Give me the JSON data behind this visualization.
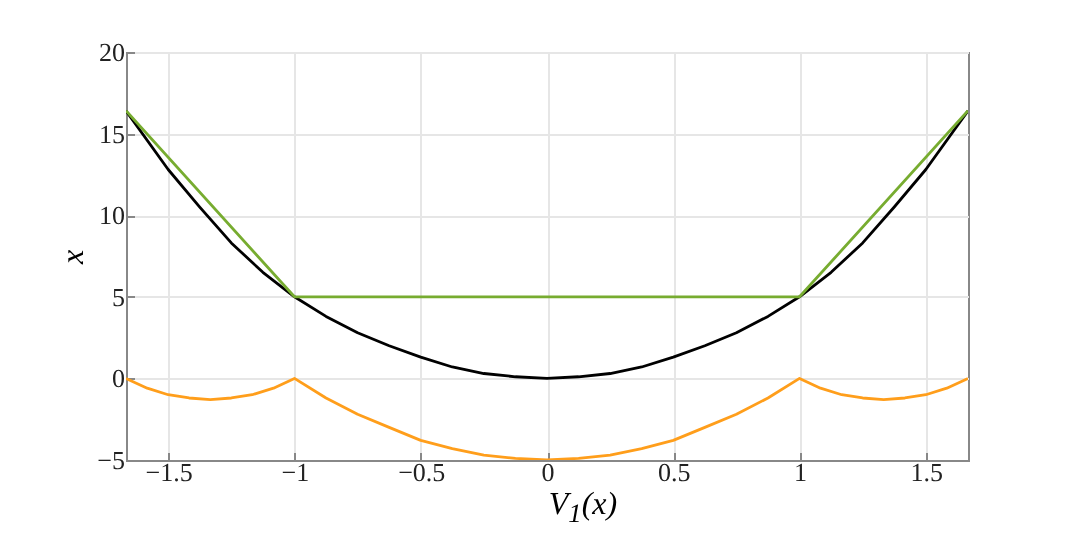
{
  "chart_data": {
    "type": "line",
    "xlabel": "V$_{1}$(x)",
    "ylabel": "x",
    "xlim": [
      -1.667,
      1.667
    ],
    "ylim": [
      -5,
      20
    ],
    "xticks": [
      -1.5,
      -1,
      -0.5,
      0,
      0.5,
      1,
      1.5
    ],
    "yticks": [
      -5,
      0,
      5,
      10,
      15,
      20
    ],
    "grid": true,
    "series": [
      {
        "color": "#000000",
        "x": [
          -1.667,
          -1.5,
          -1.375,
          -1.25,
          -1.125,
          -1,
          -0.875,
          -0.75,
          -0.625,
          -0.5,
          -0.375,
          -0.25,
          -0.125,
          0,
          0.125,
          0.25,
          0.375,
          0.5,
          0.625,
          0.75,
          0.875,
          1,
          1.125,
          1.25,
          1.375,
          1.5,
          1.667
        ],
        "values": [
          16.4,
          12.8,
          10.5,
          8.3,
          6.5,
          5,
          3.8,
          2.8,
          2,
          1.3,
          0.7,
          0.3,
          0.1,
          0,
          0.1,
          0.3,
          0.7,
          1.3,
          2,
          2.8,
          3.8,
          5,
          6.5,
          8.3,
          10.5,
          12.8,
          16.4
        ]
      },
      {
        "color": "#77ac30",
        "x": [
          -1.667,
          -1,
          1,
          1.667
        ],
        "values": [
          16.4,
          5,
          5,
          16.4
        ]
      },
      {
        "color": "#ff9e1b",
        "x": [
          -1.667,
          -1.583,
          -1.5,
          -1.417,
          -1.333,
          -1.25,
          -1.167,
          -1.083,
          -1,
          -0.875,
          -0.75,
          -0.625,
          -0.5,
          -0.375,
          -0.25,
          -0.125,
          0,
          0.125,
          0.25,
          0.375,
          0.5,
          0.625,
          0.75,
          0.875,
          1,
          1.083,
          1.167,
          1.25,
          1.333,
          1.417,
          1.5,
          1.583,
          1.667
        ],
        "values": [
          0,
          -0.6,
          -1,
          -1.2,
          -1.3,
          -1.2,
          -1,
          -0.6,
          0,
          -1.2,
          -2.2,
          -3,
          -3.8,
          -4.3,
          -4.7,
          -4.9,
          -5,
          -4.9,
          -4.7,
          -4.3,
          -3.8,
          -3,
          -2.2,
          -1.2,
          0,
          -0.6,
          -1,
          -1.2,
          -1.3,
          -1.2,
          -1,
          -0.6,
          0
        ]
      }
    ]
  }
}
